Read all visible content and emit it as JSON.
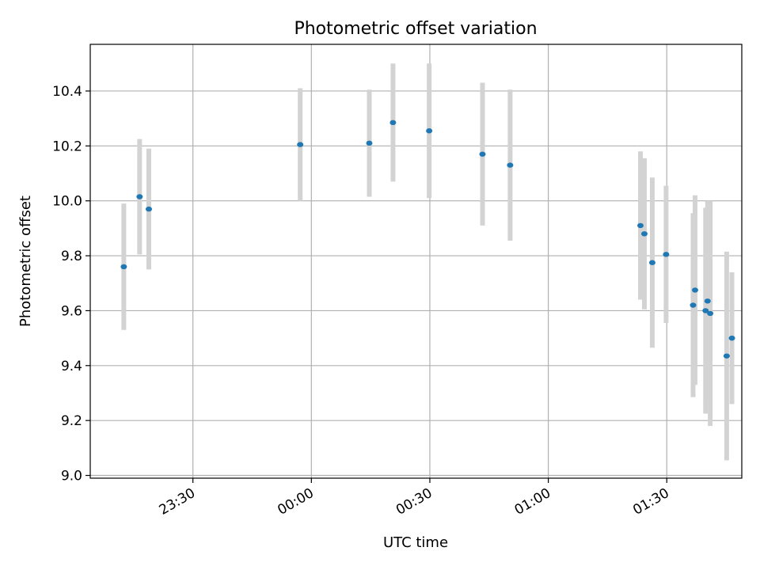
{
  "chart_data": {
    "type": "scatter",
    "title": "Photometric offset variation",
    "xlabel": "UTC time",
    "ylabel": "Photometric offset",
    "xlim": [
      "23:04",
      "01:49"
    ],
    "ylim": [
      8.99,
      10.57
    ],
    "x_ticks": [
      "23:30",
      "00:00",
      "00:30",
      "01:00",
      "01:30"
    ],
    "y_ticks": [
      9.0,
      9.2,
      9.4,
      9.6,
      9.8,
      10.0,
      10.2,
      10.4
    ],
    "grid": true,
    "point_color": "#1f77b4",
    "errorbar_color": "#d3d3d3",
    "points": [
      {
        "x": "23:12:30",
        "y": 9.76,
        "err": 0.23
      },
      {
        "x": "23:16:30",
        "y": 10.015,
        "err": 0.21
      },
      {
        "x": "23:18:50",
        "y": 9.97,
        "err": 0.22
      },
      {
        "x": "23:57:10",
        "y": 10.205,
        "err": 0.205
      },
      {
        "x": "00:14:40",
        "y": 10.21,
        "err": 0.195
      },
      {
        "x": "00:20:40",
        "y": 10.285,
        "err": 0.215
      },
      {
        "x": "00:29:50",
        "y": 10.255,
        "err": 0.245
      },
      {
        "x": "00:43:20",
        "y": 10.17,
        "err": 0.26
      },
      {
        "x": "00:50:20",
        "y": 10.13,
        "err": 0.275
      },
      {
        "x": "01:23:20",
        "y": 9.91,
        "err": 0.27
      },
      {
        "x": "01:24:20",
        "y": 9.88,
        "err": 0.275
      },
      {
        "x": "01:26:20",
        "y": 9.775,
        "err": 0.31
      },
      {
        "x": "01:29:50",
        "y": 9.805,
        "err": 0.25
      },
      {
        "x": "01:36:40",
        "y": 9.62,
        "err": 0.335
      },
      {
        "x": "01:37:10",
        "y": 9.675,
        "err": 0.345
      },
      {
        "x": "01:39:50",
        "y": 9.6,
        "err": 0.375
      },
      {
        "x": "01:40:20",
        "y": 9.635,
        "err": 0.365
      },
      {
        "x": "01:41:00",
        "y": 9.59,
        "err": 0.41
      },
      {
        "x": "01:45:10",
        "y": 9.435,
        "err": 0.38
      },
      {
        "x": "01:46:30",
        "y": 9.5,
        "err": 0.24
      }
    ]
  }
}
